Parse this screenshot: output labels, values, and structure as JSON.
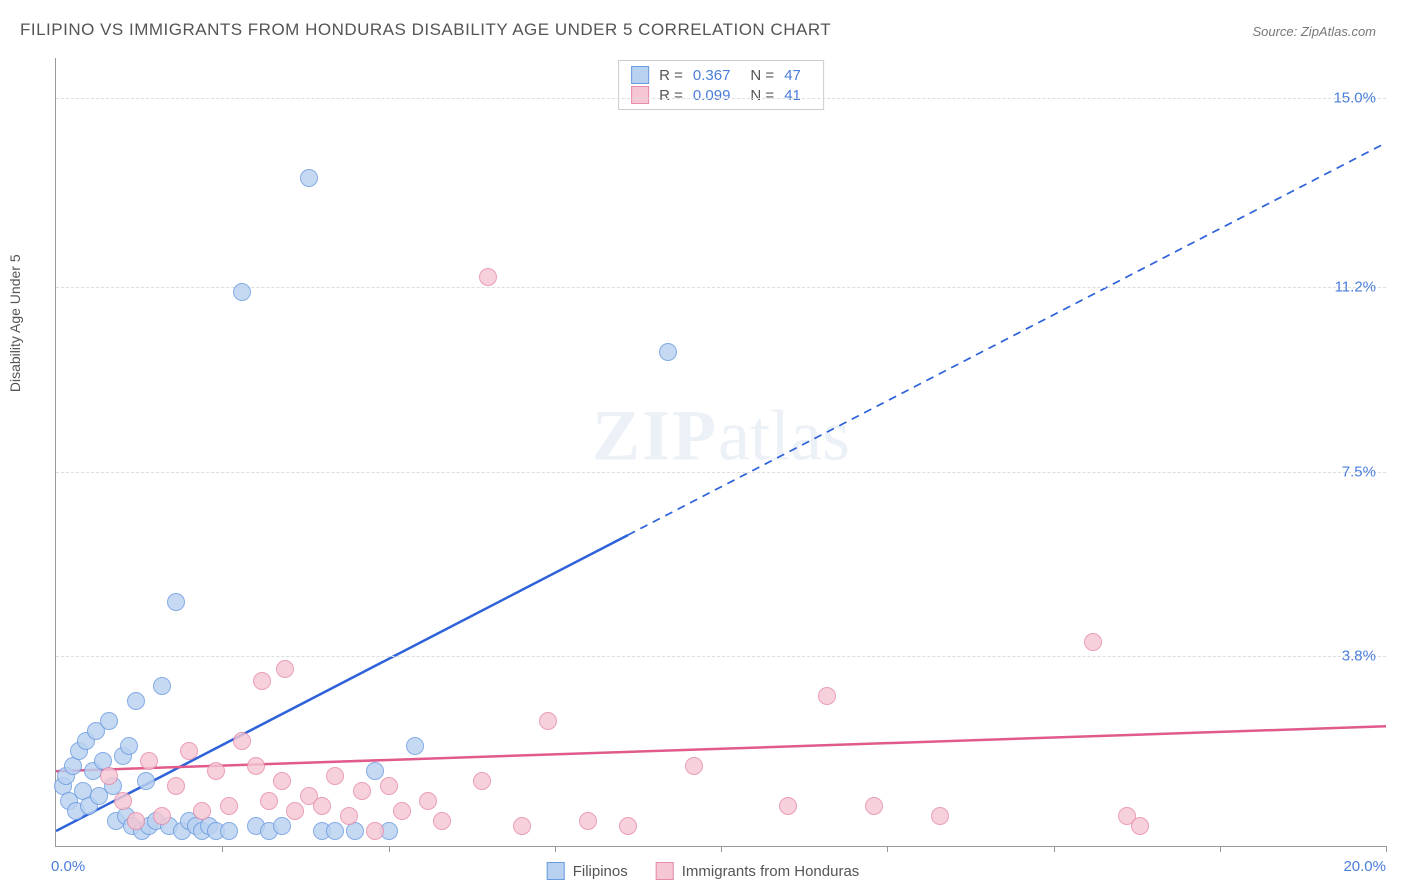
{
  "title": "FILIPINO VS IMMIGRANTS FROM HONDURAS DISABILITY AGE UNDER 5 CORRELATION CHART",
  "source": "Source: ZipAtlas.com",
  "watermark_main": "ZIP",
  "watermark_sub": "atlas",
  "chart": {
    "type": "scatter",
    "xlim": [
      0,
      20
    ],
    "ylim": [
      0,
      15.8
    ],
    "x_start_label": "0.0%",
    "x_end_label": "20.0%",
    "y_axis_title": "Disability Age Under 5",
    "y_ticks": [
      {
        "v": 3.8,
        "label": "3.8%"
      },
      {
        "v": 7.5,
        "label": "7.5%"
      },
      {
        "v": 11.2,
        "label": "11.2%"
      },
      {
        "v": 15.0,
        "label": "15.0%"
      }
    ],
    "x_tick_positions": [
      2.5,
      5.0,
      7.5,
      10.0,
      12.5,
      15.0,
      17.5,
      20.0
    ],
    "background_color": "#ffffff",
    "grid_color": "#dddddd",
    "axis_color": "#999999",
    "tick_label_color": "#4a7ddb",
    "marker_radius": 9,
    "marker_stroke_width": 1.5,
    "series": [
      {
        "name": "Filipinos",
        "fill": "#b9d1f0",
        "stroke": "#6a9be0",
        "stats": {
          "R": "0.367",
          "N": "47"
        },
        "trend": {
          "x1": 0.0,
          "y1": 0.3,
          "x2": 20.0,
          "y2": 14.1,
          "solid_until_x": 8.6,
          "color": "#2e62d9",
          "width": 2.5,
          "dash": "8,6"
        },
        "points": [
          [
            0.1,
            1.2
          ],
          [
            0.15,
            1.4
          ],
          [
            0.2,
            0.9
          ],
          [
            0.25,
            1.6
          ],
          [
            0.3,
            0.7
          ],
          [
            0.35,
            1.9
          ],
          [
            0.4,
            1.1
          ],
          [
            0.45,
            2.1
          ],
          [
            0.5,
            0.8
          ],
          [
            0.55,
            1.5
          ],
          [
            0.6,
            2.3
          ],
          [
            0.65,
            1.0
          ],
          [
            0.7,
            1.7
          ],
          [
            0.8,
            2.5
          ],
          [
            0.85,
            1.2
          ],
          [
            0.9,
            0.5
          ],
          [
            1.0,
            1.8
          ],
          [
            1.05,
            0.6
          ],
          [
            1.1,
            2.0
          ],
          [
            1.15,
            0.4
          ],
          [
            1.2,
            2.9
          ],
          [
            1.3,
            0.3
          ],
          [
            1.35,
            1.3
          ],
          [
            1.4,
            0.4
          ],
          [
            1.5,
            0.5
          ],
          [
            1.6,
            3.2
          ],
          [
            1.7,
            0.4
          ],
          [
            1.8,
            4.9
          ],
          [
            1.9,
            0.3
          ],
          [
            2.0,
            0.5
          ],
          [
            2.1,
            0.4
          ],
          [
            2.2,
            0.3
          ],
          [
            2.3,
            0.4
          ],
          [
            2.4,
            0.3
          ],
          [
            2.6,
            0.3
          ],
          [
            2.8,
            11.1
          ],
          [
            3.0,
            0.4
          ],
          [
            3.2,
            0.3
          ],
          [
            3.4,
            0.4
          ],
          [
            3.8,
            13.4
          ],
          [
            4.0,
            0.3
          ],
          [
            4.2,
            0.3
          ],
          [
            4.5,
            0.3
          ],
          [
            4.8,
            1.5
          ],
          [
            5.0,
            0.3
          ],
          [
            5.4,
            2.0
          ],
          [
            9.2,
            9.9
          ]
        ]
      },
      {
        "name": "Immigrants from Honduras",
        "fill": "#f5c6d4",
        "stroke": "#e68ba8",
        "stats": {
          "R": "0.099",
          "N": "41"
        },
        "trend": {
          "x1": 0.0,
          "y1": 1.5,
          "x2": 20.0,
          "y2": 2.4,
          "solid_until_x": 20.0,
          "color": "#e05a8c",
          "width": 2.5,
          "dash": ""
        },
        "points": [
          [
            0.8,
            1.4
          ],
          [
            1.0,
            0.9
          ],
          [
            1.2,
            0.5
          ],
          [
            1.4,
            1.7
          ],
          [
            1.6,
            0.6
          ],
          [
            1.8,
            1.2
          ],
          [
            2.0,
            1.9
          ],
          [
            2.2,
            0.7
          ],
          [
            2.4,
            1.5
          ],
          [
            2.6,
            0.8
          ],
          [
            2.8,
            2.1
          ],
          [
            3.0,
            1.6
          ],
          [
            3.1,
            3.3
          ],
          [
            3.2,
            0.9
          ],
          [
            3.4,
            1.3
          ],
          [
            3.45,
            3.55
          ],
          [
            3.6,
            0.7
          ],
          [
            3.8,
            1.0
          ],
          [
            4.0,
            0.8
          ],
          [
            4.2,
            1.4
          ],
          [
            4.4,
            0.6
          ],
          [
            4.6,
            1.1
          ],
          [
            4.8,
            0.3
          ],
          [
            5.0,
            1.2
          ],
          [
            5.2,
            0.7
          ],
          [
            5.6,
            0.9
          ],
          [
            5.8,
            0.5
          ],
          [
            6.4,
            1.3
          ],
          [
            6.5,
            11.4
          ],
          [
            7.0,
            0.4
          ],
          [
            7.4,
            2.5
          ],
          [
            8.0,
            0.5
          ],
          [
            8.6,
            0.4
          ],
          [
            9.6,
            1.6
          ],
          [
            11.0,
            0.8
          ],
          [
            11.6,
            3.0
          ],
          [
            12.3,
            0.8
          ],
          [
            13.3,
            0.6
          ],
          [
            15.6,
            4.1
          ],
          [
            16.1,
            0.6
          ],
          [
            16.3,
            0.4
          ]
        ]
      }
    ]
  },
  "bottom_legend": [
    {
      "label": "Filipinos",
      "fill": "#b9d1f0",
      "stroke": "#6a9be0"
    },
    {
      "label": "Immigrants from Honduras",
      "fill": "#f5c6d4",
      "stroke": "#e68ba8"
    }
  ]
}
